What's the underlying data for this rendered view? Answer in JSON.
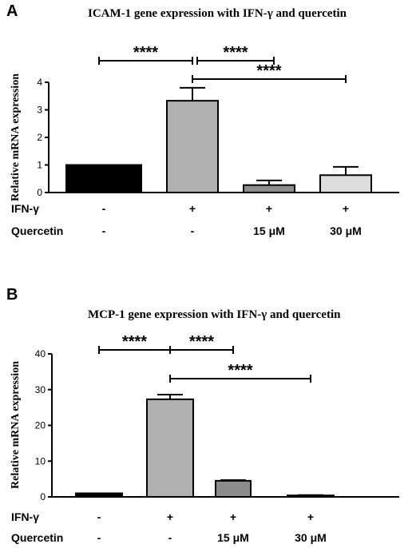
{
  "chart_data": [
    {
      "type": "bar",
      "panel": "A",
      "title": "ICAM-1 gene expression with IFN-γ and quercetin",
      "ylabel": "Relative mRNA expression",
      "ylim": [
        0,
        4
      ],
      "yticks": [
        0,
        1,
        2,
        3,
        4
      ],
      "values": [
        1.0,
        3.33,
        0.27,
        0.63
      ],
      "errors": [
        0.0,
        0.47,
        0.17,
        0.3
      ],
      "colors": [
        "#000000",
        "#b0b0b0",
        "#8c8c8c",
        "#dcdcdc"
      ],
      "conditions": [
        {
          "label": "IFN-γ",
          "values": [
            "-",
            "+",
            "+",
            "+"
          ]
        },
        {
          "label": "Quercetin",
          "values": [
            "-",
            "-",
            "15 μM",
            "30 μM"
          ]
        }
      ],
      "significance": [
        {
          "from": 0,
          "to": 1,
          "label": "****"
        },
        {
          "from": 1,
          "to": 2,
          "label": "****"
        },
        {
          "from": 1,
          "to": 3,
          "label": "****"
        }
      ]
    },
    {
      "type": "bar",
      "panel": "B",
      "title": "MCP-1 gene expression with IFN-γ and quercetin",
      "ylabel": "Relative mRNA expression",
      "ylim": [
        0,
        40
      ],
      "yticks": [
        0,
        10,
        20,
        30,
        40
      ],
      "values": [
        1.0,
        27.3,
        4.5,
        0.4
      ],
      "errors": [
        0.0,
        1.3,
        0.2,
        0.1
      ],
      "colors": [
        "#000000",
        "#b0b0b0",
        "#8c8c8c",
        "#dcdcdc"
      ],
      "conditions": [
        {
          "label": "IFN-γ",
          "values": [
            "-",
            "+",
            "+",
            "+"
          ]
        },
        {
          "label": "Quercetin",
          "values": [
            "-",
            "-",
            "15 μM",
            "30 μM"
          ]
        }
      ],
      "significance": [
        {
          "from": 0,
          "to": 1,
          "label": "****"
        },
        {
          "from": 1,
          "to": 2,
          "label": "****"
        },
        {
          "from": 1,
          "to": 3,
          "label": "****"
        }
      ]
    }
  ]
}
